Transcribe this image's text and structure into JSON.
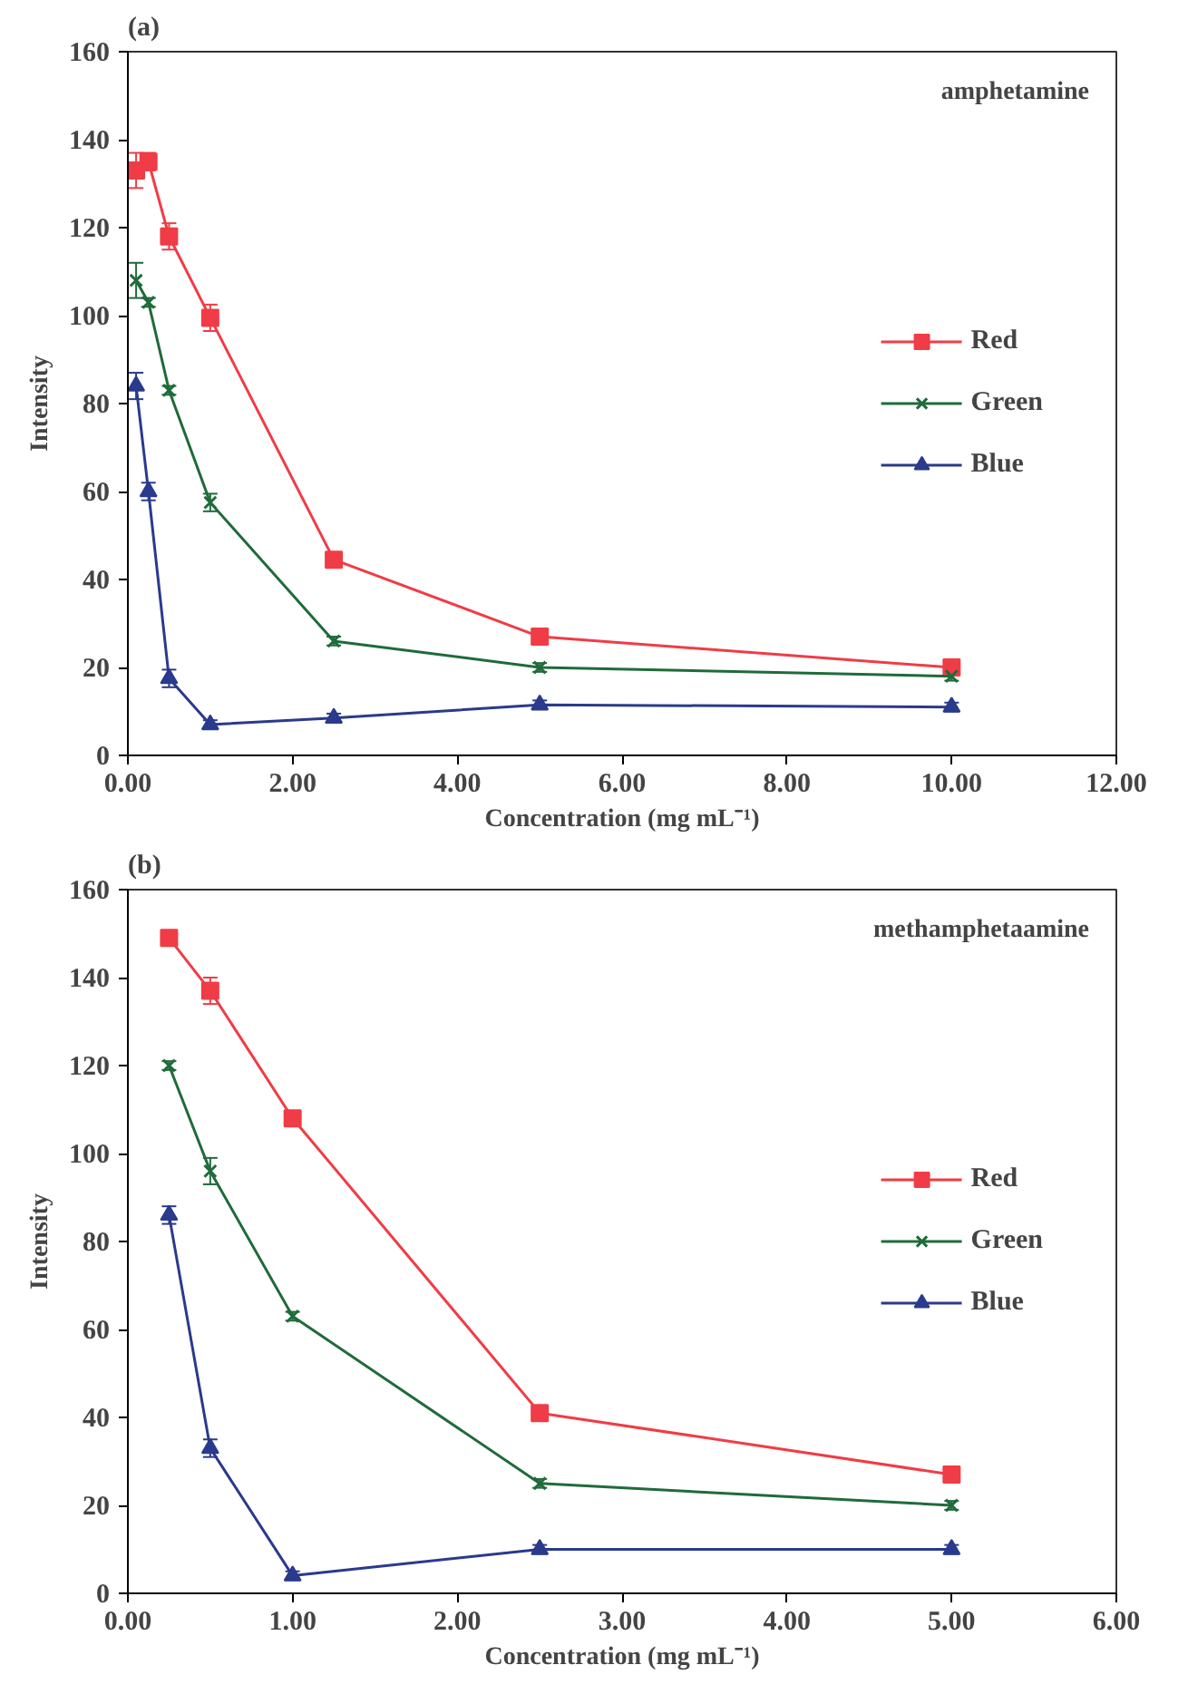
{
  "chart_data": [
    {
      "type": "line",
      "title": "(a)",
      "annotations": [
        "amphetamine"
      ],
      "xlabel": "Concentration (mg mL⁻¹)",
      "ylabel": "Intensity",
      "xlim": [
        0,
        12
      ],
      "xticks": [
        {
          "value": 0,
          "label": "0.00"
        },
        {
          "value": 2,
          "label": "2.00"
        },
        {
          "value": 4,
          "label": "4.00"
        },
        {
          "value": 6,
          "label": "6.00"
        },
        {
          "value": 8,
          "label": "8.00"
        },
        {
          "value": 10,
          "label": "10.00"
        },
        {
          "value": 12,
          "label": "12.00"
        }
      ],
      "ylim": [
        0,
        160
      ],
      "yticks": [
        0,
        20,
        40,
        60,
        80,
        100,
        120,
        140,
        160
      ],
      "grid": false,
      "legend": "right",
      "line_style": "solid",
      "series": [
        {
          "name": "Red",
          "color": "#f03c46",
          "marker": "square",
          "x": [
            0.1,
            0.25,
            0.5,
            1,
            2.5,
            5,
            10
          ],
          "values": [
            133,
            135,
            118,
            99.5,
            44.5,
            27,
            20
          ],
          "errors": [
            4,
            2,
            3,
            3,
            1,
            1,
            1
          ]
        },
        {
          "name": "Green",
          "color": "#1f6b3a",
          "marker": "cross",
          "x": [
            0.1,
            0.25,
            0.5,
            1,
            2.5,
            5,
            10
          ],
          "values": [
            108,
            103,
            83,
            57.5,
            26,
            20,
            18
          ],
          "errors": [
            4,
            1,
            1,
            2,
            1,
            1,
            1
          ]
        },
        {
          "name": "Blue",
          "color": "#2a3a8c",
          "marker": "triangle",
          "x": [
            0.1,
            0.25,
            0.5,
            1,
            2.5,
            5,
            10
          ],
          "values": [
            84,
            60,
            17.5,
            7,
            8.5,
            11.5,
            11
          ],
          "errors": [
            3,
            2,
            2,
            1,
            1,
            1,
            1
          ]
        }
      ]
    },
    {
      "type": "line",
      "title": "(b)",
      "annotations": [
        "methamphetaamine"
      ],
      "xlabel": "Concentration (mg mL⁻¹)",
      "ylabel": "Intensity",
      "xlim": [
        0,
        6
      ],
      "xticks": [
        {
          "value": 0,
          "label": "0.00"
        },
        {
          "value": 1,
          "label": "1.00"
        },
        {
          "value": 2,
          "label": "2.00"
        },
        {
          "value": 3,
          "label": "3.00"
        },
        {
          "value": 4,
          "label": "4.00"
        },
        {
          "value": 5,
          "label": "5.00"
        },
        {
          "value": 6,
          "label": "6.00"
        }
      ],
      "ylim": [
        0,
        160
      ],
      "yticks": [
        0,
        20,
        40,
        60,
        80,
        100,
        120,
        140,
        160
      ],
      "grid": false,
      "legend": "right",
      "line_style": "solid",
      "series": [
        {
          "name": "Red",
          "color": "#f03c46",
          "marker": "square",
          "x": [
            0.25,
            0.5,
            1,
            2.5,
            5
          ],
          "values": [
            149,
            137,
            108,
            41,
            27
          ],
          "errors": [
            1,
            3,
            1,
            1,
            1
          ]
        },
        {
          "name": "Green",
          "color": "#1f6b3a",
          "marker": "cross",
          "x": [
            0.25,
            0.5,
            1,
            2.5,
            5
          ],
          "values": [
            120,
            96,
            63,
            25,
            20
          ],
          "errors": [
            1,
            3,
            1,
            1,
            1
          ]
        },
        {
          "name": "Blue",
          "color": "#2a3a8c",
          "marker": "triangle",
          "x": [
            0.25,
            0.5,
            1,
            2.5,
            5
          ],
          "values": [
            86,
            33,
            4,
            10,
            10
          ],
          "errors": [
            2,
            2,
            1,
            1,
            1
          ]
        }
      ]
    }
  ]
}
